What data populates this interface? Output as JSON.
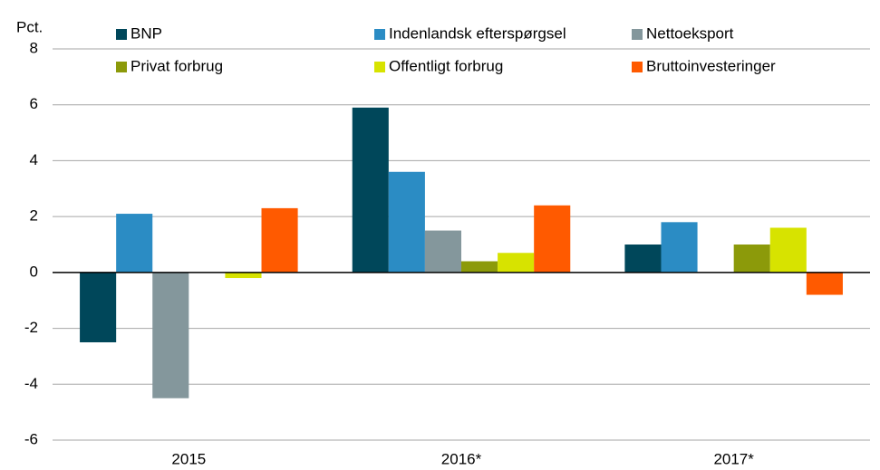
{
  "chart_data": {
    "type": "bar",
    "y_unit_label": "Pct.",
    "categories": [
      "2015",
      "2016*",
      "2017*"
    ],
    "series": [
      {
        "name": "BNP",
        "color": "#00475a",
        "values": [
          -2.5,
          5.9,
          1.0
        ]
      },
      {
        "name": "Indenlandsk efterspørgsel",
        "color": "#2b8cc4",
        "values": [
          2.1,
          3.6,
          1.8
        ]
      },
      {
        "name": "Nettoeksport",
        "color": "#84979c",
        "values": [
          -4.5,
          1.5,
          0
        ]
      },
      {
        "name": "Privat forbrug",
        "color": "#8c9a0a",
        "values": [
          0,
          0.4,
          1.0
        ]
      },
      {
        "name": "Offentligt forbrug",
        "color": "#d7e300",
        "values": [
          -0.2,
          0.7,
          1.6
        ]
      },
      {
        "name": "Bruttoinvesteringer",
        "color": "#ff5a00",
        "values": [
          2.3,
          2.4,
          -0.8
        ]
      }
    ],
    "ylim": [
      -6,
      8
    ],
    "yticks": [
      -6,
      -4,
      -2,
      0,
      2,
      4,
      6,
      8
    ],
    "grid": true
  }
}
